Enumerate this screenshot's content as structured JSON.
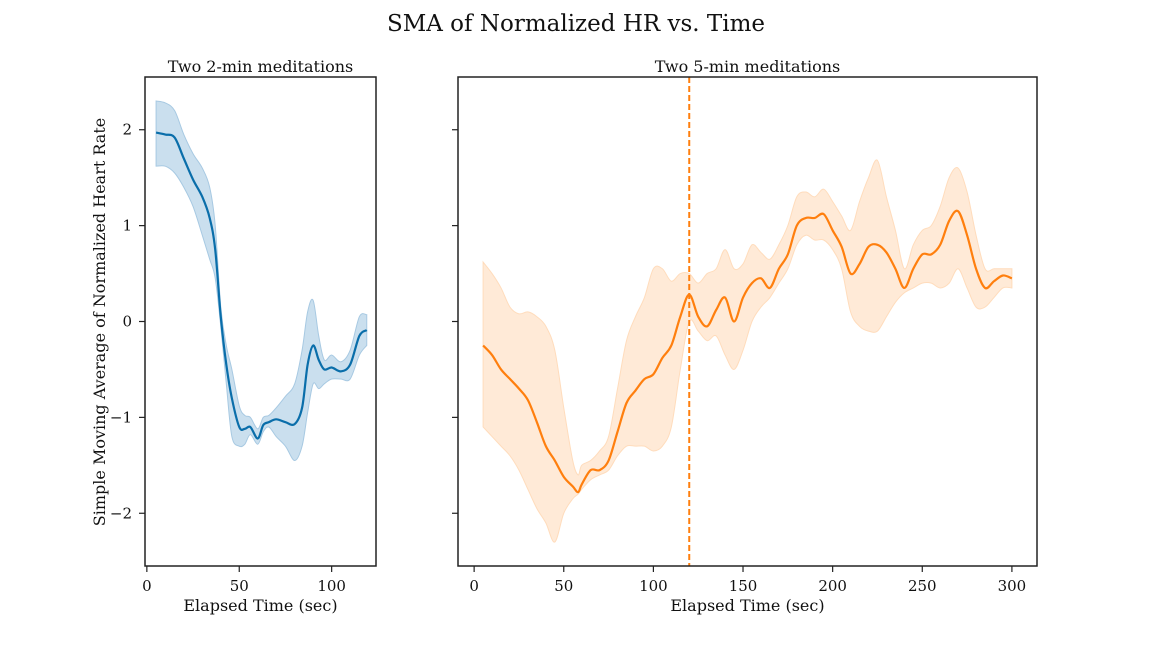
{
  "chart_data": {
    "suptitle": "SMA of Normalized HR vs. Time",
    "ylabel": "Simple Moving Average of Normalized Heart Rate",
    "panels": [
      {
        "title": "Two 2-min meditations",
        "type": "line",
        "xlabel": "Elapsed Time (sec)",
        "xlim": [
          -1,
          124
        ],
        "ylim": [
          -2.55,
          2.55
        ],
        "xticks": [
          0,
          50,
          100
        ],
        "yticks": [
          2,
          1,
          0,
          -1,
          -2
        ],
        "ytick_labels": [
          "2",
          "1",
          "0",
          "−1",
          "−2"
        ],
        "color": "#0a6eaa",
        "band_color": "#a7c9e2",
        "x": [
          5,
          10,
          15,
          20,
          25,
          30,
          34,
          37,
          40,
          43,
          46,
          50,
          53,
          56,
          60,
          63,
          66,
          70,
          75,
          80,
          84,
          87,
          90,
          93,
          96,
          100,
          105,
          110,
          115,
          119
        ],
        "y": [
          1.97,
          1.95,
          1.92,
          1.7,
          1.48,
          1.3,
          1.08,
          0.75,
          0.05,
          -0.45,
          -0.8,
          -1.1,
          -1.12,
          -1.1,
          -1.22,
          -1.08,
          -1.05,
          -1.02,
          -1.05,
          -1.07,
          -0.9,
          -0.45,
          -0.25,
          -0.4,
          -0.5,
          -0.48,
          -0.52,
          -0.45,
          -0.15,
          -0.09
        ],
        "lower": [
          1.62,
          1.62,
          1.55,
          1.4,
          1.2,
          0.9,
          0.65,
          0.45,
          -0.05,
          -0.65,
          -1.2,
          -1.3,
          -1.28,
          -1.18,
          -1.28,
          -1.15,
          -1.1,
          -1.2,
          -1.3,
          -1.45,
          -1.3,
          -0.95,
          -0.65,
          -0.7,
          -0.65,
          -0.6,
          -0.6,
          -0.6,
          -0.35,
          -0.25
        ],
        "upper": [
          2.3,
          2.28,
          2.2,
          1.95,
          1.75,
          1.6,
          1.4,
          1.0,
          0.15,
          -0.25,
          -0.5,
          -0.88,
          -0.98,
          -1.0,
          -1.12,
          -1.0,
          -0.98,
          -0.9,
          -0.78,
          -0.65,
          -0.3,
          0.1,
          0.22,
          -0.15,
          -0.4,
          -0.35,
          -0.42,
          -0.3,
          0.05,
          0.07
        ]
      },
      {
        "title": "Two 5-min meditations",
        "type": "line",
        "xlabel": "Elapsed Time (sec)",
        "xlim": [
          -9,
          314
        ],
        "ylim": [
          -2.55,
          2.55
        ],
        "xticks": [
          0,
          50,
          100,
          150,
          200,
          250,
          300
        ],
        "yticks": [
          2,
          1,
          0,
          -1,
          -2
        ],
        "color": "#ff7f0e",
        "band_color": "#ffdcbc",
        "vline": 120,
        "x": [
          5,
          10,
          15,
          20,
          25,
          30,
          35,
          40,
          45,
          50,
          55,
          58,
          60,
          65,
          70,
          75,
          80,
          85,
          90,
          95,
          100,
          105,
          110,
          115,
          120,
          125,
          130,
          135,
          140,
          145,
          150,
          155,
          160,
          165,
          170,
          175,
          180,
          185,
          190,
          195,
          200,
          205,
          210,
          215,
          220,
          225,
          230,
          235,
          240,
          245,
          250,
          255,
          260,
          265,
          270,
          275,
          280,
          285,
          290,
          295,
          300
        ],
        "y": [
          -0.25,
          -0.35,
          -0.5,
          -0.6,
          -0.7,
          -0.82,
          -1.05,
          -1.3,
          -1.45,
          -1.62,
          -1.72,
          -1.78,
          -1.7,
          -1.55,
          -1.55,
          -1.45,
          -1.15,
          -0.85,
          -0.72,
          -0.6,
          -0.55,
          -0.38,
          -0.25,
          0.05,
          0.28,
          0.05,
          -0.05,
          0.12,
          0.25,
          0.0,
          0.25,
          0.4,
          0.45,
          0.35,
          0.55,
          0.7,
          1.0,
          1.08,
          1.08,
          1.12,
          0.95,
          0.78,
          0.5,
          0.6,
          0.78,
          0.8,
          0.72,
          0.55,
          0.35,
          0.55,
          0.7,
          0.7,
          0.8,
          1.05,
          1.15,
          0.9,
          0.55,
          0.35,
          0.42,
          0.48,
          0.45
        ],
        "lower": [
          -1.1,
          -1.2,
          -1.3,
          -1.4,
          -1.55,
          -1.75,
          -1.95,
          -2.1,
          -2.3,
          -2.0,
          -1.85,
          -1.8,
          -1.75,
          -1.65,
          -1.6,
          -1.55,
          -1.4,
          -1.3,
          -1.3,
          -1.3,
          -1.35,
          -1.3,
          -1.1,
          -0.5,
          0.0,
          -0.1,
          -0.2,
          -0.15,
          -0.35,
          -0.5,
          -0.3,
          0.0,
          0.15,
          0.25,
          0.4,
          0.55,
          0.8,
          0.9,
          0.85,
          0.85,
          0.75,
          0.55,
          0.1,
          -0.05,
          -0.1,
          -0.1,
          0.05,
          0.2,
          0.3,
          0.35,
          0.4,
          0.4,
          0.35,
          0.4,
          0.55,
          0.35,
          0.15,
          0.15,
          0.25,
          0.35,
          0.35
        ],
        "upper": [
          0.62,
          0.5,
          0.35,
          0.15,
          0.08,
          0.1,
          0.05,
          -0.05,
          -0.3,
          -0.9,
          -1.45,
          -1.6,
          -1.5,
          -1.45,
          -1.35,
          -1.2,
          -0.7,
          -0.2,
          0.05,
          0.25,
          0.55,
          0.55,
          0.42,
          0.5,
          0.5,
          0.4,
          0.5,
          0.55,
          0.75,
          0.55,
          0.6,
          0.8,
          0.72,
          0.65,
          0.8,
          1.0,
          1.3,
          1.35,
          1.3,
          1.38,
          1.25,
          1.1,
          0.95,
          1.25,
          1.5,
          1.68,
          1.3,
          0.95,
          0.55,
          0.8,
          0.95,
          1.0,
          1.2,
          1.5,
          1.6,
          1.35,
          0.9,
          0.55,
          0.55,
          0.55,
          0.55
        ]
      }
    ]
  }
}
